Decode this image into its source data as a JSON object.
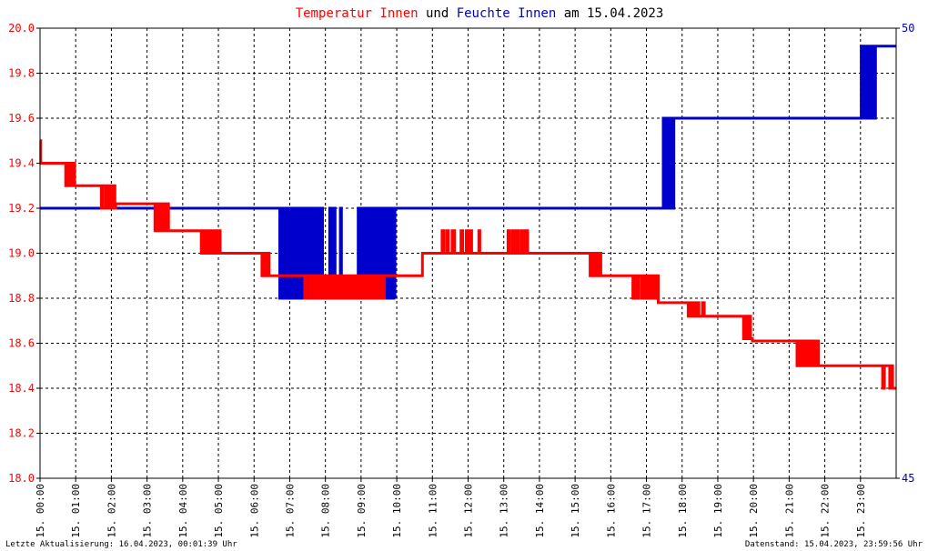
{
  "title": {
    "part1": "Temperatur Innen",
    "part2": " und ",
    "part3": "Feuchte Innen",
    "part4": " am 15.04.2023",
    "color1": "#ff0000",
    "color2": "#000000",
    "color3": "#0000cc",
    "color4": "#000000"
  },
  "footer": {
    "left": "Letzte Aktualisierung: 16.04.2023, 00:01:39 Uhr",
    "right": "Datenstand: 15.04.2023, 23:59:56 Uhr"
  },
  "chart_data": {
    "type": "line",
    "grid": true,
    "x_axis": {
      "range_hours": [
        0,
        24
      ],
      "tick_labels": [
        "15. 00:00",
        "15. 01:00",
        "15. 02:00",
        "15. 03:00",
        "15. 04:00",
        "15. 05:00",
        "15. 06:00",
        "15. 07:00",
        "15. 08:00",
        "15. 09:00",
        "15. 10:00",
        "15. 11:00",
        "15. 12:00",
        "15. 13:00",
        "15. 14:00",
        "15. 15:00",
        "15. 16:00",
        "15. 17:00",
        "15. 18:00",
        "15. 19:00",
        "15. 20:00",
        "15. 21:00",
        "15. 22:00",
        "15. 23:00"
      ]
    },
    "y_left": {
      "range": [
        18.0,
        20.0
      ],
      "tick_labels": [
        "18.0",
        "18.2",
        "18.4",
        "18.6",
        "18.8",
        "19.0",
        "19.2",
        "19.4",
        "19.6",
        "19.8",
        "20.0"
      ],
      "color": "#ff0000"
    },
    "y_right": {
      "range": [
        45,
        50
      ],
      "tick_labels": [
        "45",
        "50"
      ],
      "color": "#0000cc"
    },
    "series": [
      {
        "name": "Temperatur Innen",
        "axis": "left",
        "color": "#ff0000",
        "points": [
          [
            0.0,
            19.5
          ],
          [
            0.02,
            19.4
          ],
          [
            0.7,
            19.4
          ],
          [
            0.72,
            19.3
          ],
          [
            0.75,
            19.4
          ],
          [
            0.78,
            19.3
          ],
          [
            0.82,
            19.4
          ],
          [
            0.85,
            19.3
          ],
          [
            0.88,
            19.4
          ],
          [
            0.92,
            19.3
          ],
          [
            0.95,
            19.4
          ],
          [
            0.97,
            19.3
          ],
          [
            1.7,
            19.3
          ],
          [
            1.72,
            19.2
          ],
          [
            1.77,
            19.3
          ],
          [
            1.85,
            19.2
          ],
          [
            1.92,
            19.3
          ],
          [
            1.98,
            19.2
          ],
          [
            2.05,
            19.3
          ],
          [
            2.1,
            19.2
          ],
          [
            2.12,
            19.22
          ],
          [
            3.2,
            19.22
          ],
          [
            3.22,
            19.1
          ],
          [
            3.27,
            19.22
          ],
          [
            3.32,
            19.1
          ],
          [
            3.37,
            19.22
          ],
          [
            3.42,
            19.1
          ],
          [
            3.47,
            19.22
          ],
          [
            3.52,
            19.1
          ],
          [
            3.57,
            19.22
          ],
          [
            3.6,
            19.1
          ],
          [
            4.5,
            19.1
          ],
          [
            4.52,
            19.0
          ],
          [
            4.58,
            19.1
          ],
          [
            4.65,
            19.0
          ],
          [
            4.72,
            19.1
          ],
          [
            4.78,
            19.0
          ],
          [
            4.85,
            19.1
          ],
          [
            4.92,
            19.0
          ],
          [
            4.98,
            19.1
          ],
          [
            5.05,
            19.0
          ],
          [
            6.2,
            19.0
          ],
          [
            6.22,
            18.9
          ],
          [
            6.27,
            19.0
          ],
          [
            6.33,
            18.9
          ],
          [
            6.38,
            19.0
          ],
          [
            6.42,
            18.9
          ],
          [
            7.4,
            18.9
          ],
          [
            7.42,
            18.8
          ],
          [
            7.47,
            18.9
          ],
          [
            7.55,
            18.8
          ],
          [
            7.6,
            18.9
          ],
          [
            7.68,
            18.8
          ],
          [
            7.75,
            18.9
          ],
          [
            7.8,
            18.8
          ],
          [
            7.85,
            18.9
          ],
          [
            7.9,
            18.8
          ],
          [
            7.95,
            18.9
          ],
          [
            8.0,
            18.8
          ],
          [
            8.05,
            18.9
          ],
          [
            8.1,
            18.8
          ],
          [
            8.15,
            18.9
          ],
          [
            8.2,
            18.8
          ],
          [
            8.25,
            18.9
          ],
          [
            8.3,
            18.8
          ],
          [
            8.35,
            18.9
          ],
          [
            8.4,
            18.8
          ],
          [
            8.45,
            18.9
          ],
          [
            8.5,
            18.8
          ],
          [
            8.55,
            18.9
          ],
          [
            8.6,
            18.8
          ],
          [
            8.65,
            18.9
          ],
          [
            8.7,
            18.8
          ],
          [
            8.75,
            18.9
          ],
          [
            8.8,
            18.8
          ],
          [
            8.85,
            18.9
          ],
          [
            8.9,
            18.8
          ],
          [
            8.95,
            18.9
          ],
          [
            9.0,
            18.8
          ],
          [
            9.05,
            18.9
          ],
          [
            9.1,
            18.8
          ],
          [
            9.15,
            18.9
          ],
          [
            9.2,
            18.8
          ],
          [
            9.25,
            18.9
          ],
          [
            9.3,
            18.8
          ],
          [
            9.35,
            18.9
          ],
          [
            9.4,
            18.8
          ],
          [
            9.45,
            18.9
          ],
          [
            9.5,
            18.8
          ],
          [
            9.55,
            18.9
          ],
          [
            9.6,
            18.8
          ],
          [
            9.65,
            18.9
          ],
          [
            10.7,
            18.9
          ],
          [
            10.72,
            19.0
          ],
          [
            11.25,
            19.0
          ],
          [
            11.27,
            19.1
          ],
          [
            11.32,
            19.0
          ],
          [
            11.4,
            19.1
          ],
          [
            11.45,
            19.0
          ],
          [
            11.55,
            19.1
          ],
          [
            11.62,
            19.0
          ],
          [
            11.8,
            19.1
          ],
          [
            11.85,
            19.0
          ],
          [
            11.95,
            19.1
          ],
          [
            12.0,
            19.0
          ],
          [
            12.05,
            19.1
          ],
          [
            12.1,
            19.0
          ],
          [
            12.3,
            19.1
          ],
          [
            12.33,
            19.0
          ],
          [
            13.1,
            19.0
          ],
          [
            13.12,
            19.1
          ],
          [
            13.17,
            19.0
          ],
          [
            13.25,
            19.1
          ],
          [
            13.3,
            19.0
          ],
          [
            13.37,
            19.1
          ],
          [
            13.42,
            19.0
          ],
          [
            13.5,
            19.1
          ],
          [
            13.55,
            19.0
          ],
          [
            13.62,
            19.1
          ],
          [
            13.67,
            19.0
          ],
          [
            15.4,
            19.0
          ],
          [
            15.42,
            18.9
          ],
          [
            15.47,
            19.0
          ],
          [
            15.52,
            18.9
          ],
          [
            15.57,
            19.0
          ],
          [
            15.62,
            18.9
          ],
          [
            15.67,
            19.0
          ],
          [
            15.72,
            18.9
          ],
          [
            16.6,
            18.9
          ],
          [
            16.62,
            18.8
          ],
          [
            16.67,
            18.9
          ],
          [
            16.72,
            18.8
          ],
          [
            16.77,
            18.9
          ],
          [
            16.85,
            18.8
          ],
          [
            16.9,
            18.9
          ],
          [
            16.95,
            18.8
          ],
          [
            17.0,
            18.9
          ],
          [
            17.05,
            18.8
          ],
          [
            17.1,
            18.9
          ],
          [
            17.15,
            18.8
          ],
          [
            17.2,
            18.9
          ],
          [
            17.25,
            18.8
          ],
          [
            17.3,
            18.9
          ],
          [
            17.33,
            18.78
          ],
          [
            18.15,
            18.78
          ],
          [
            18.17,
            18.72
          ],
          [
            18.22,
            18.78
          ],
          [
            18.27,
            18.72
          ],
          [
            18.32,
            18.78
          ],
          [
            18.37,
            18.72
          ],
          [
            18.42,
            18.78
          ],
          [
            18.47,
            18.72
          ],
          [
            18.52,
            18.72
          ],
          [
            18.57,
            18.78
          ],
          [
            18.62,
            18.72
          ],
          [
            19.7,
            18.72
          ],
          [
            19.72,
            18.62
          ],
          [
            19.77,
            18.72
          ],
          [
            19.82,
            18.62
          ],
          [
            19.87,
            18.72
          ],
          [
            19.92,
            18.62
          ],
          [
            19.97,
            18.61
          ],
          [
            21.2,
            18.61
          ],
          [
            21.22,
            18.5
          ],
          [
            21.27,
            18.61
          ],
          [
            21.32,
            18.5
          ],
          [
            21.37,
            18.61
          ],
          [
            21.42,
            18.5
          ],
          [
            21.47,
            18.61
          ],
          [
            21.52,
            18.5
          ],
          [
            21.57,
            18.61
          ],
          [
            21.62,
            18.5
          ],
          [
            21.67,
            18.61
          ],
          [
            21.72,
            18.5
          ],
          [
            21.77,
            18.61
          ],
          [
            21.82,
            18.5
          ],
          [
            23.6,
            18.5
          ],
          [
            23.62,
            18.4
          ],
          [
            23.67,
            18.5
          ],
          [
            23.75,
            18.5
          ],
          [
            23.8,
            18.5
          ],
          [
            23.82,
            18.4
          ],
          [
            23.87,
            18.5
          ],
          [
            23.9,
            18.4
          ],
          [
            24.0,
            18.4
          ]
        ]
      },
      {
        "name": "Feuchte Innen",
        "axis": "right",
        "color": "#0000cc",
        "points": [
          [
            0.0,
            48.0
          ],
          [
            6.7,
            48.0
          ],
          [
            6.72,
            47.0
          ],
          [
            6.77,
            48.0
          ],
          [
            6.82,
            47.0
          ],
          [
            6.87,
            48.0
          ],
          [
            6.92,
            47.0
          ],
          [
            6.97,
            48.0
          ],
          [
            7.02,
            47.0
          ],
          [
            7.07,
            48.0
          ],
          [
            7.12,
            47.0
          ],
          [
            7.17,
            48.0
          ],
          [
            7.22,
            47.0
          ],
          [
            7.27,
            48.0
          ],
          [
            7.32,
            47.0
          ],
          [
            7.37,
            48.0
          ],
          [
            7.42,
            47.0
          ],
          [
            7.47,
            48.0
          ],
          [
            7.52,
            47.0
          ],
          [
            7.57,
            48.0
          ],
          [
            7.62,
            47.0
          ],
          [
            7.67,
            48.0
          ],
          [
            7.72,
            47.0
          ],
          [
            7.77,
            48.0
          ],
          [
            7.82,
            47.0
          ],
          [
            7.87,
            48.0
          ],
          [
            7.92,
            47.0
          ],
          [
            8.1,
            47.0
          ],
          [
            8.12,
            48.0
          ],
          [
            8.17,
            47.0
          ],
          [
            8.22,
            48.0
          ],
          [
            8.27,
            47.0
          ],
          [
            8.4,
            47.0
          ],
          [
            8.42,
            48.0
          ],
          [
            8.45,
            47.0
          ],
          [
            8.9,
            47.0
          ],
          [
            8.92,
            48.0
          ],
          [
            8.97,
            47.0
          ],
          [
            9.02,
            48.0
          ],
          [
            9.07,
            47.0
          ],
          [
            9.12,
            48.0
          ],
          [
            9.17,
            47.0
          ],
          [
            9.22,
            48.0
          ],
          [
            9.27,
            47.0
          ],
          [
            9.32,
            48.0
          ],
          [
            9.37,
            47.0
          ],
          [
            9.42,
            48.0
          ],
          [
            9.47,
            47.0
          ],
          [
            9.52,
            48.0
          ],
          [
            9.57,
            47.0
          ],
          [
            9.62,
            48.0
          ],
          [
            9.67,
            47.0
          ],
          [
            9.7,
            47.0
          ],
          [
            9.72,
            48.0
          ],
          [
            9.77,
            47.0
          ],
          [
            9.82,
            48.0
          ],
          [
            9.87,
            47.0
          ],
          [
            9.9,
            47.0
          ],
          [
            9.92,
            48.0
          ],
          [
            9.95,
            47.0
          ],
          [
            9.95,
            48.0
          ],
          [
            17.45,
            48.0
          ],
          [
            17.47,
            49.0
          ],
          [
            17.52,
            48.0
          ],
          [
            17.57,
            49.0
          ],
          [
            17.62,
            48.0
          ],
          [
            17.67,
            49.0
          ],
          [
            17.72,
            48.0
          ],
          [
            17.77,
            49.0
          ],
          [
            17.8,
            49.0
          ],
          [
            23.0,
            49.0
          ],
          [
            23.02,
            49.8
          ],
          [
            23.07,
            49.0
          ],
          [
            23.12,
            49.8
          ],
          [
            23.17,
            49.0
          ],
          [
            23.22,
            49.8
          ],
          [
            23.27,
            49.0
          ],
          [
            23.32,
            49.8
          ],
          [
            23.37,
            49.0
          ],
          [
            23.42,
            49.8
          ],
          [
            23.45,
            49.8
          ],
          [
            24.0,
            49.8
          ]
        ]
      }
    ]
  }
}
